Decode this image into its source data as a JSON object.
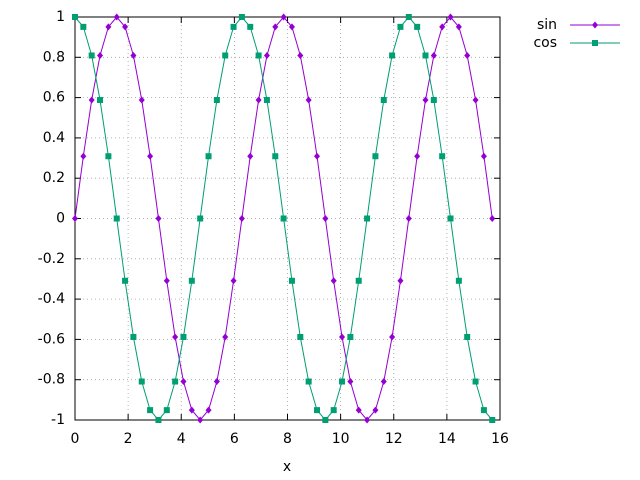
{
  "chart_data": {
    "type": "line",
    "x_label": "x",
    "x": [
      0,
      0.314,
      0.628,
      0.942,
      1.257,
      1.571,
      1.885,
      2.199,
      2.513,
      2.827,
      3.142,
      3.456,
      3.77,
      4.084,
      4.398,
      4.712,
      5.027,
      5.341,
      5.655,
      5.969,
      6.283,
      6.597,
      6.912,
      7.226,
      7.54,
      7.854,
      8.168,
      8.482,
      8.796,
      9.111,
      9.425,
      9.739,
      10.053,
      10.367,
      10.681,
      10.996,
      11.31,
      11.624,
      11.938,
      12.252,
      12.566,
      12.881,
      13.195,
      13.509,
      13.823,
      14.137,
      14.451,
      14.765,
      15.08,
      15.394,
      15.708
    ],
    "series": [
      {
        "name": "sin",
        "color": "#9400d3",
        "marker": "diamond",
        "values": [
          0,
          0.309,
          0.588,
          0.809,
          0.951,
          1,
          0.951,
          0.809,
          0.588,
          0.309,
          0,
          -0.309,
          -0.588,
          -0.809,
          -0.951,
          -1,
          -0.951,
          -0.809,
          -0.588,
          -0.309,
          0,
          0.309,
          0.588,
          0.809,
          0.951,
          1,
          0.951,
          0.809,
          0.588,
          0.309,
          0,
          -0.309,
          -0.588,
          -0.809,
          -0.951,
          -1,
          -0.951,
          -0.809,
          -0.588,
          -0.309,
          0,
          0.309,
          0.588,
          0.809,
          0.951,
          1,
          0.951,
          0.809,
          0.588,
          0.309,
          0
        ]
      },
      {
        "name": "cos",
        "color": "#009e73",
        "marker": "square",
        "values": [
          1,
          0.951,
          0.809,
          0.588,
          0.309,
          0,
          -0.309,
          -0.588,
          -0.809,
          -0.951,
          -1,
          -0.951,
          -0.809,
          -0.588,
          -0.309,
          0,
          0.309,
          0.588,
          0.809,
          0.951,
          1,
          0.951,
          0.809,
          0.588,
          0.309,
          0,
          -0.309,
          -0.588,
          -0.809,
          -0.951,
          -1,
          -0.951,
          -0.809,
          -0.588,
          -0.309,
          0,
          0.309,
          0.588,
          0.809,
          0.951,
          1,
          0.951,
          0.809,
          0.588,
          0.309,
          0,
          -0.309,
          -0.588,
          -0.809,
          -0.951,
          -1
        ]
      }
    ],
    "xlim": [
      0,
      16
    ],
    "ylim": [
      -1,
      1
    ],
    "xticks": [
      0,
      2,
      4,
      6,
      8,
      10,
      12,
      14,
      16
    ],
    "yticks": [
      -1,
      -0.8,
      -0.6,
      -0.4,
      -0.2,
      0,
      0.2,
      0.4,
      0.6,
      0.8,
      1
    ],
    "grid": true,
    "legend": "top-right"
  }
}
